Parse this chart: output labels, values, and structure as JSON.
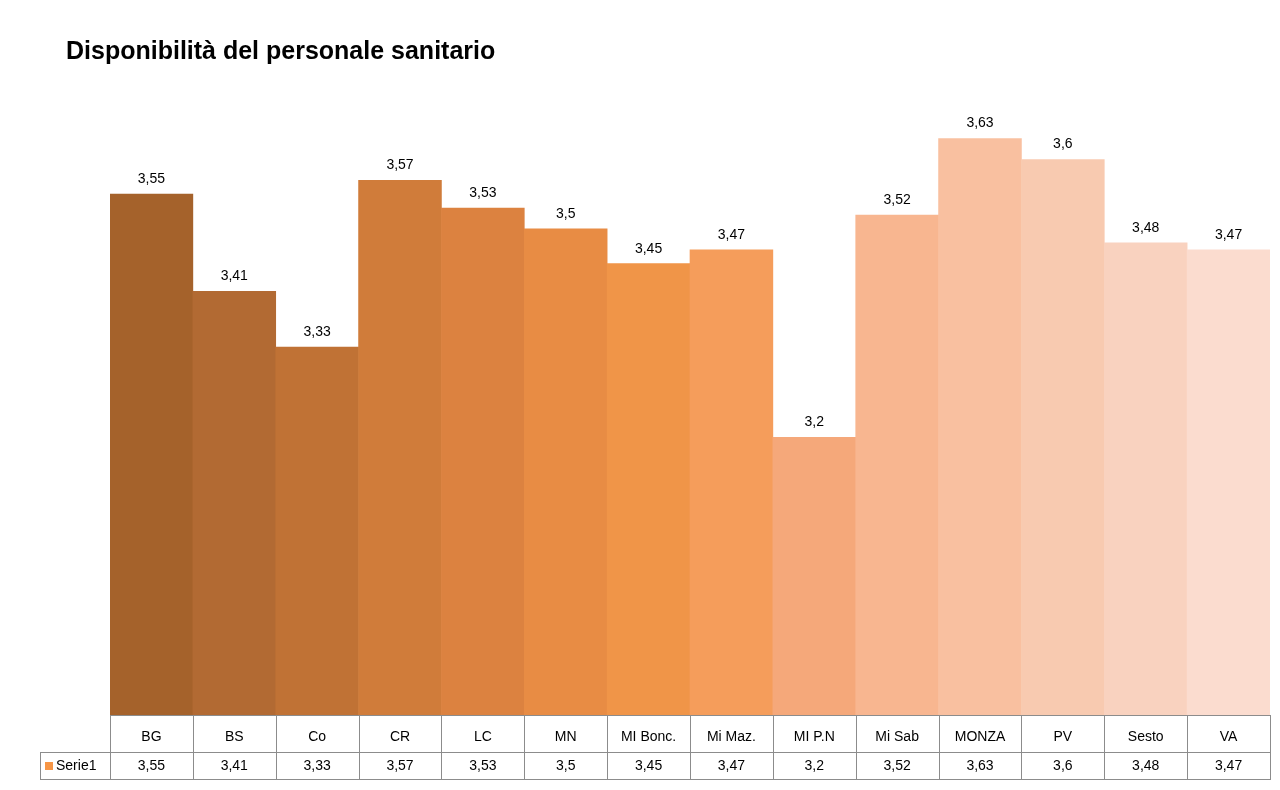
{
  "chart_data": {
    "type": "bar",
    "title": "Disponibilità del personale sanitario",
    "categories": [
      "BG",
      "BS",
      "Co",
      "CR",
      "LC",
      "MN",
      "MI Bonc.",
      "Mi Maz.",
      "MI P.N",
      "Mi Sab",
      "MONZA",
      "PV",
      "Sesto",
      "VA"
    ],
    "series": [
      {
        "name": "Serie1",
        "color": "#f79646",
        "values": [
          3.55,
          3.41,
          3.33,
          3.57,
          3.53,
          3.5,
          3.45,
          3.47,
          3.2,
          3.52,
          3.63,
          3.6,
          3.48,
          3.47
        ],
        "colors": [
          "#a5622b",
          "#b26a33",
          "#c07235",
          "#d07c3a",
          "#dc8240",
          "#e88c44",
          "#f09548",
          "#f59d5b",
          "#f5a87a",
          "#f8b690",
          "#f9c0a0",
          "#f8cab0",
          "#f9d2bf",
          "#fbdccf"
        ],
        "value_labels": [
          "3,55",
          "3,41",
          "3,33",
          "3,57",
          "3,53",
          "3,5",
          "3,45",
          "3,47",
          "3,2",
          "3,52",
          "3,63",
          "3,6",
          "3,48",
          "3,47"
        ]
      }
    ],
    "legend": "left"
  }
}
